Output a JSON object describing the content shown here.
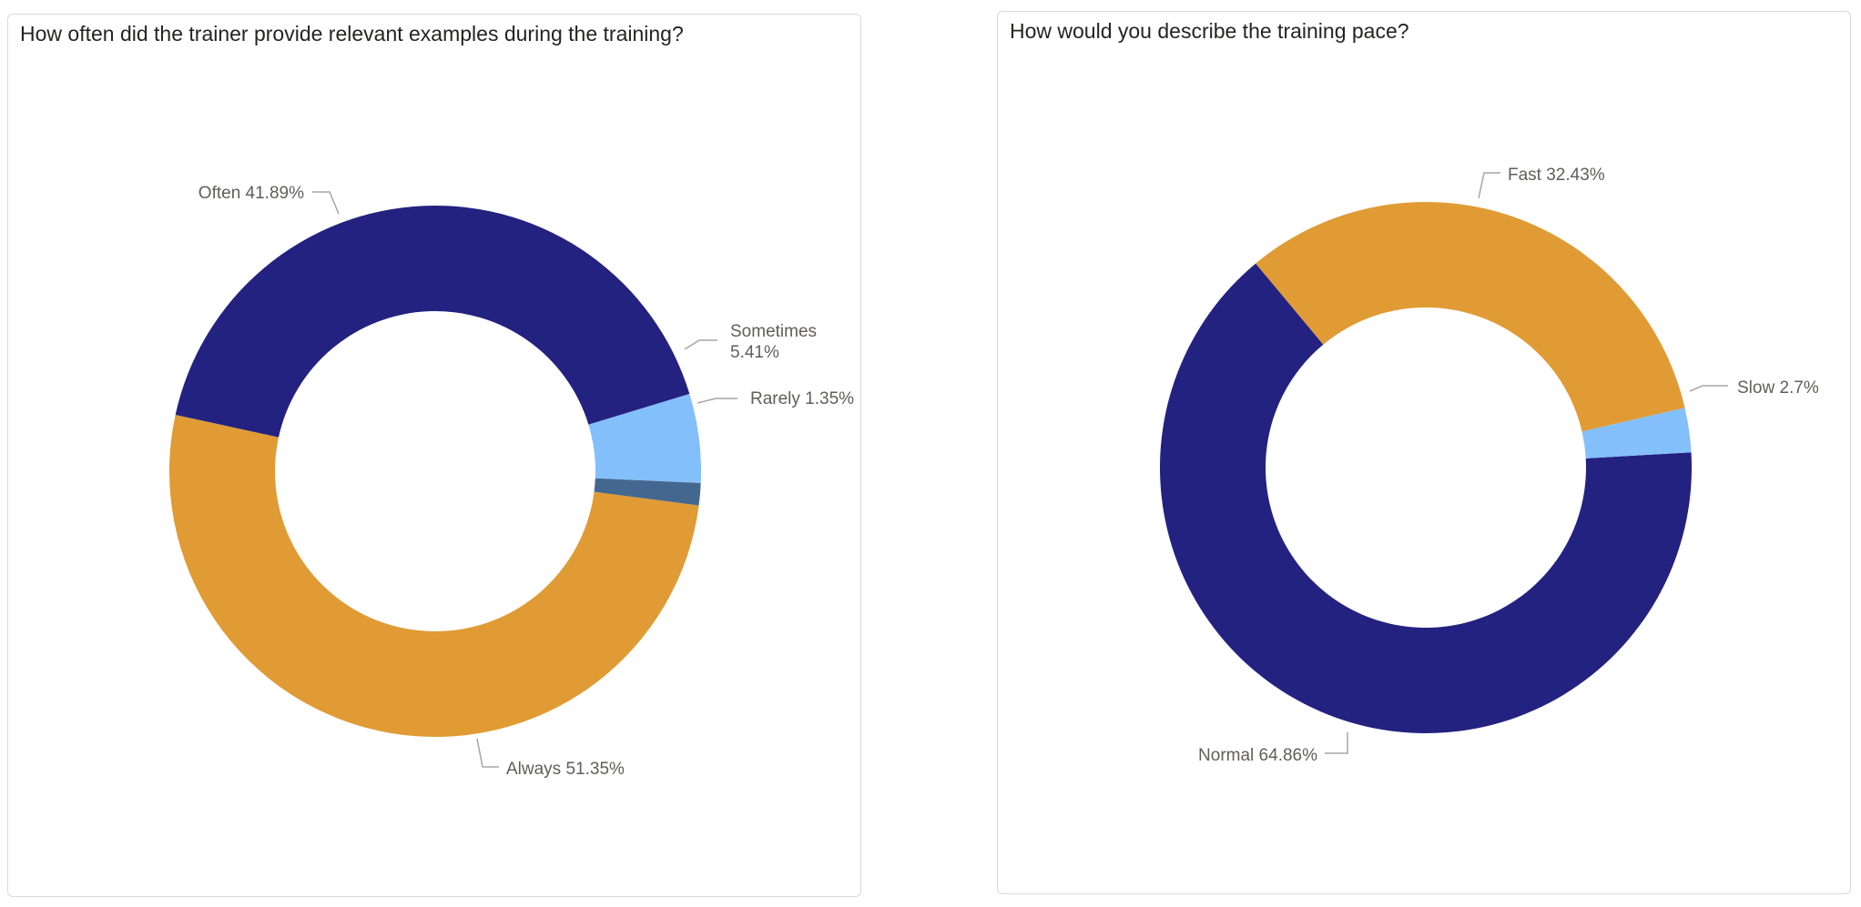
{
  "colors": {
    "navy": "#232280",
    "orange": "#E09B35",
    "light_blue": "#83BFFB",
    "steel_blue": "#44678F"
  },
  "chart_data": [
    {
      "type": "pie",
      "title": "How often did the trainer provide relevant examples during the training?",
      "donut": true,
      "slices": [
        {
          "label": "Always",
          "value": 51.35,
          "display": "51.35%",
          "color": "#E09B35"
        },
        {
          "label": "Often",
          "value": 41.89,
          "display": "41.89%",
          "color": "#232280"
        },
        {
          "label": "Sometimes",
          "value": 5.41,
          "display": "5.41%",
          "color": "#83BFFB"
        },
        {
          "label": "Rarely",
          "value": 1.35,
          "display": "1.35%",
          "color": "#44678F"
        }
      ]
    },
    {
      "type": "pie",
      "title": "How would you describe the training pace?",
      "donut": true,
      "slices": [
        {
          "label": "Normal",
          "value": 64.86,
          "display": "64.86%",
          "color": "#232280"
        },
        {
          "label": "Fast",
          "value": 32.43,
          "display": "32.43%",
          "color": "#E09B35"
        },
        {
          "label": "Slow",
          "value": 2.7,
          "display": "2.7%",
          "color": "#83BFFB"
        }
      ]
    }
  ]
}
